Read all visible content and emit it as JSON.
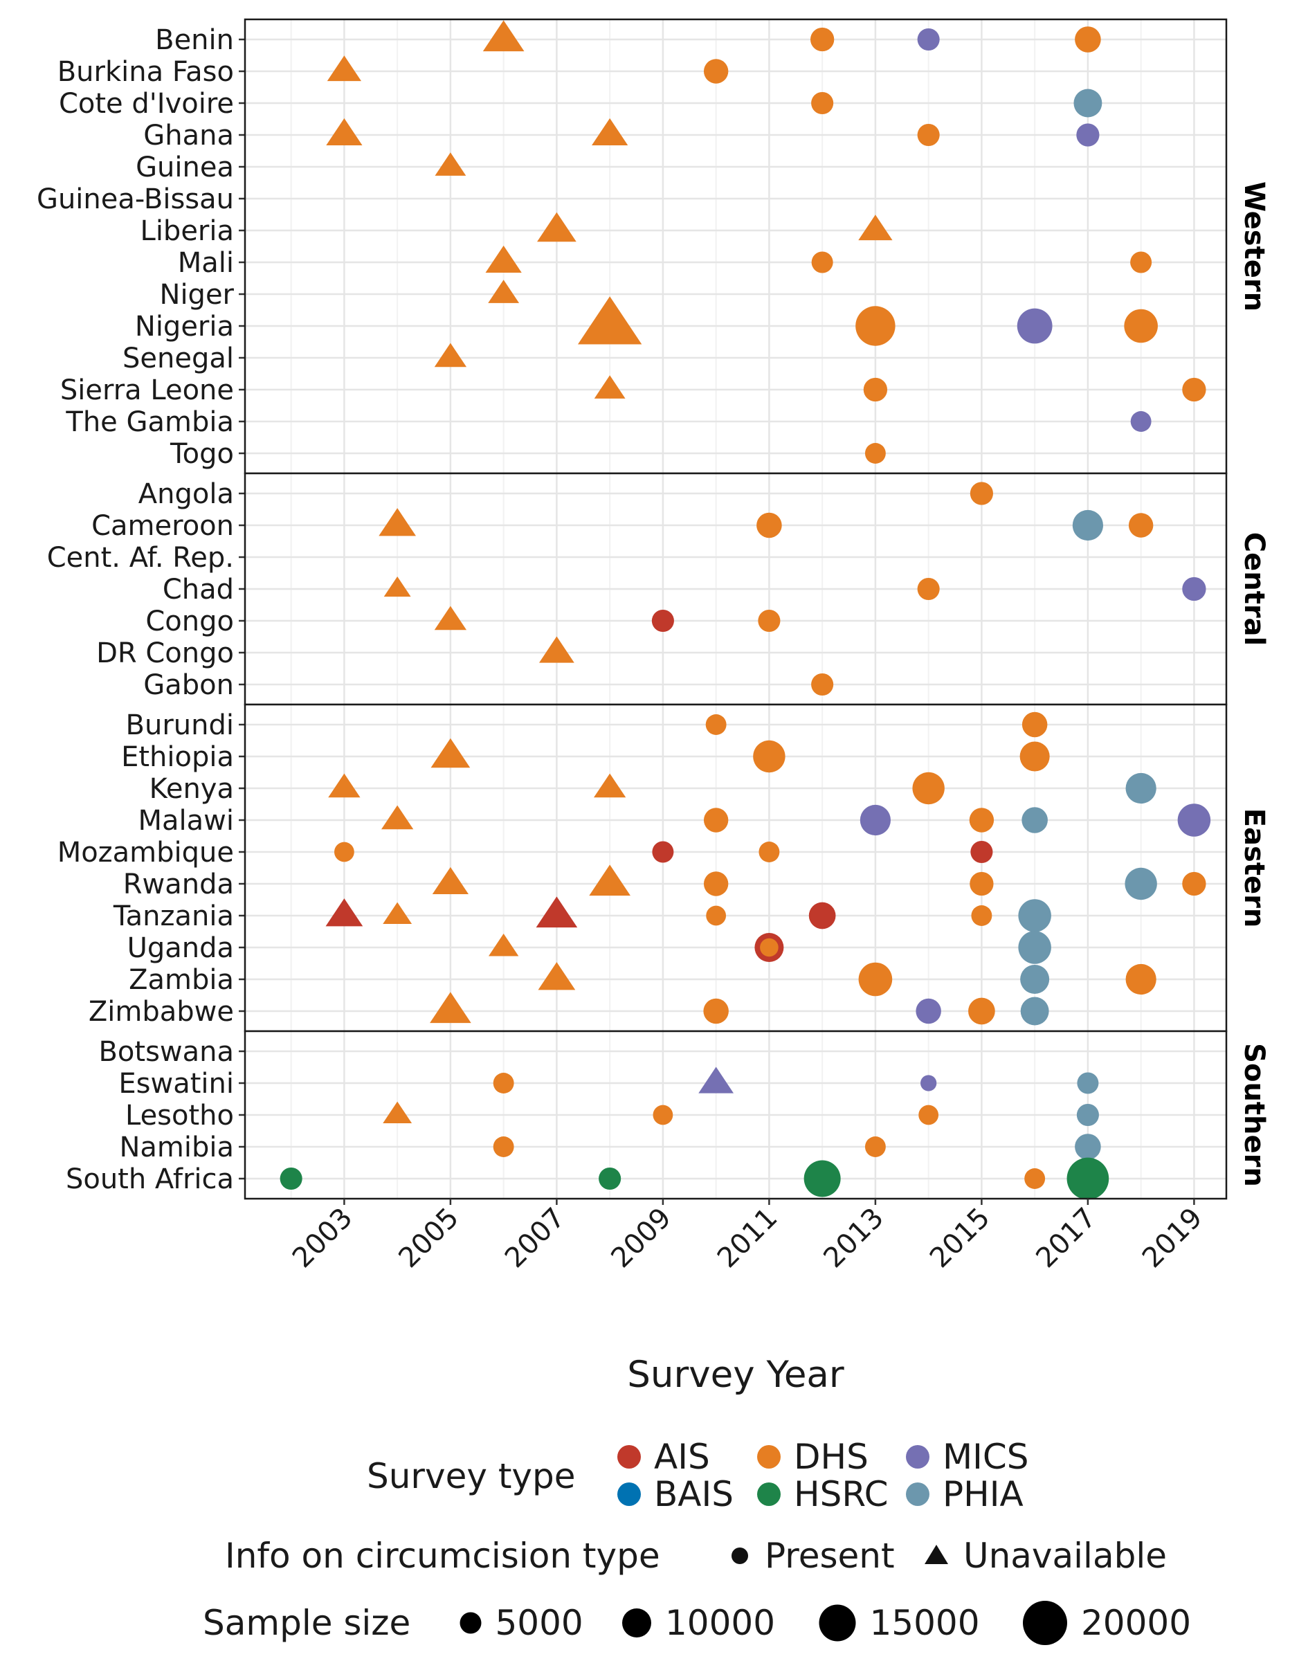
{
  "chart_data": {
    "type": "scatter",
    "xlabel": "Survey Year",
    "x_ticks": [
      2003,
      2005,
      2007,
      2009,
      2011,
      2013,
      2015,
      2017,
      2019
    ],
    "xlim": [
      2001.2,
      2019.6
    ],
    "colors": {
      "AIS": "#C0392B",
      "BAIS": "#0072B2",
      "DHS": "#E67E22",
      "HSRC": "#1E8449",
      "MICS": "#7570B3",
      "PHIA": "#6C97AD"
    },
    "panels": [
      {
        "name": "Western",
        "countries": [
          "Benin",
          "Burkina Faso",
          "Cote d'Ivoire",
          "Ghana",
          "Guinea",
          "Guinea-Bissau",
          "Liberia",
          "Mali",
          "Niger",
          "Nigeria",
          "Senegal",
          "Sierra Leone",
          "The Gambia",
          "Togo"
        ],
        "points": [
          {
            "country": "Benin",
            "year": 2006,
            "type": "DHS",
            "info": "Unavailable",
            "n": 11000
          },
          {
            "country": "Benin",
            "year": 2012,
            "type": "DHS",
            "info": "Present",
            "n": 6500
          },
          {
            "country": "Benin",
            "year": 2014,
            "type": "MICS",
            "info": "Present",
            "n": 5500
          },
          {
            "country": "Benin",
            "year": 2017,
            "type": "DHS",
            "info": "Present",
            "n": 8000
          },
          {
            "country": "Burkina Faso",
            "year": 2003,
            "type": "DHS",
            "info": "Unavailable",
            "n": 7500
          },
          {
            "country": "Burkina Faso",
            "year": 2010,
            "type": "DHS",
            "info": "Present",
            "n": 7000
          },
          {
            "country": "Cote d'Ivoire",
            "year": 2012,
            "type": "DHS",
            "info": "Present",
            "n": 5500
          },
          {
            "country": "Cote d'Ivoire",
            "year": 2017,
            "type": "PHIA",
            "info": "Present",
            "n": 9500
          },
          {
            "country": "Ghana",
            "year": 2003,
            "type": "DHS",
            "info": "Unavailable",
            "n": 8500
          },
          {
            "country": "Ghana",
            "year": 2008,
            "type": "DHS",
            "info": "Unavailable",
            "n": 8500
          },
          {
            "country": "Ghana",
            "year": 2014,
            "type": "DHS",
            "info": "Present",
            "n": 5500
          },
          {
            "country": "Ghana",
            "year": 2017,
            "type": "MICS",
            "info": "Present",
            "n": 6000
          },
          {
            "country": "Guinea",
            "year": 2005,
            "type": "DHS",
            "info": "Unavailable",
            "n": 6000
          },
          {
            "country": "Liberia",
            "year": 2007,
            "type": "DHS",
            "info": "Unavailable",
            "n": 10000
          },
          {
            "country": "Liberia",
            "year": 2013,
            "type": "DHS",
            "info": "Unavailable",
            "n": 7500
          },
          {
            "country": "Mali",
            "year": 2006,
            "type": "DHS",
            "info": "Unavailable",
            "n": 8500
          },
          {
            "country": "Mali",
            "year": 2012,
            "type": "DHS",
            "info": "Present",
            "n": 5000
          },
          {
            "country": "Mali",
            "year": 2018,
            "type": "DHS",
            "info": "Present",
            "n": 5000
          },
          {
            "country": "Niger",
            "year": 2006,
            "type": "DHS",
            "info": "Unavailable",
            "n": 6000
          },
          {
            "country": "Nigeria",
            "year": 2008,
            "type": "DHS",
            "info": "Unavailable",
            "n": 22000
          },
          {
            "country": "Nigeria",
            "year": 2013,
            "type": "DHS",
            "info": "Present",
            "n": 17000
          },
          {
            "country": "Nigeria",
            "year": 2016,
            "type": "MICS",
            "info": "Present",
            "n": 14000
          },
          {
            "country": "Nigeria",
            "year": 2018,
            "type": "DHS",
            "info": "Present",
            "n": 13000
          },
          {
            "country": "Senegal",
            "year": 2005,
            "type": "DHS",
            "info": "Unavailable",
            "n": 6500
          },
          {
            "country": "Sierra Leone",
            "year": 2008,
            "type": "DHS",
            "info": "Unavailable",
            "n": 6000
          },
          {
            "country": "Sierra Leone",
            "year": 2013,
            "type": "DHS",
            "info": "Present",
            "n": 6500
          },
          {
            "country": "Sierra Leone",
            "year": 2019,
            "type": "DHS",
            "info": "Present",
            "n": 6500
          },
          {
            "country": "The Gambia",
            "year": 2018,
            "type": "MICS",
            "info": "Present",
            "n": 4500
          },
          {
            "country": "Togo",
            "year": 2013,
            "type": "DHS",
            "info": "Present",
            "n": 4500
          }
        ]
      },
      {
        "name": "Central",
        "countries": [
          "Angola",
          "Cameroon",
          "Cent. Af. Rep.",
          "Chad",
          "Congo",
          "DR Congo",
          "Gabon"
        ],
        "points": [
          {
            "country": "Angola",
            "year": 2015,
            "type": "DHS",
            "info": "Present",
            "n": 6000
          },
          {
            "country": "Cameroon",
            "year": 2004,
            "type": "DHS",
            "info": "Unavailable",
            "n": 9000
          },
          {
            "country": "Cameroon",
            "year": 2011,
            "type": "DHS",
            "info": "Present",
            "n": 7500
          },
          {
            "country": "Cameroon",
            "year": 2017,
            "type": "PHIA",
            "info": "Present",
            "n": 11000
          },
          {
            "country": "Cameroon",
            "year": 2018,
            "type": "DHS",
            "info": "Present",
            "n": 7000
          },
          {
            "country": "Chad",
            "year": 2004,
            "type": "DHS",
            "info": "Unavailable",
            "n": 4000
          },
          {
            "country": "Chad",
            "year": 2014,
            "type": "DHS",
            "info": "Present",
            "n": 5500
          },
          {
            "country": "Chad",
            "year": 2019,
            "type": "MICS",
            "info": "Present",
            "n": 6500
          },
          {
            "country": "Congo",
            "year": 2005,
            "type": "DHS",
            "info": "Unavailable",
            "n": 6500
          },
          {
            "country": "Congo",
            "year": 2009,
            "type": "AIS",
            "info": "Present",
            "n": 5500
          },
          {
            "country": "Congo",
            "year": 2011,
            "type": "DHS",
            "info": "Present",
            "n": 5500
          },
          {
            "country": "DR Congo",
            "year": 2007,
            "type": "DHS",
            "info": "Unavailable",
            "n": 8000
          },
          {
            "country": "Gabon",
            "year": 2012,
            "type": "DHS",
            "info": "Present",
            "n": 5500
          }
        ]
      },
      {
        "name": "Eastern",
        "countries": [
          "Burundi",
          "Ethiopia",
          "Kenya",
          "Malawi",
          "Mozambique",
          "Rwanda",
          "Tanzania",
          "Uganda",
          "Zambia",
          "Zimbabwe"
        ],
        "points": [
          {
            "country": "Burundi",
            "year": 2010,
            "type": "DHS",
            "info": "Present",
            "n": 4500
          },
          {
            "country": "Burundi",
            "year": 2016,
            "type": "DHS",
            "info": "Present",
            "n": 7500
          },
          {
            "country": "Ethiopia",
            "year": 2005,
            "type": "DHS",
            "info": "Unavailable",
            "n": 10000
          },
          {
            "country": "Ethiopia",
            "year": 2011,
            "type": "DHS",
            "info": "Present",
            "n": 12000
          },
          {
            "country": "Ethiopia",
            "year": 2016,
            "type": "DHS",
            "info": "Present",
            "n": 10500
          },
          {
            "country": "Kenya",
            "year": 2003,
            "type": "DHS",
            "info": "Unavailable",
            "n": 6500
          },
          {
            "country": "Kenya",
            "year": 2008,
            "type": "DHS",
            "info": "Unavailable",
            "n": 6500
          },
          {
            "country": "Kenya",
            "year": 2014,
            "type": "DHS",
            "info": "Present",
            "n": 12000
          },
          {
            "country": "Kenya",
            "year": 2018,
            "type": "PHIA",
            "info": "Present",
            "n": 11000
          },
          {
            "country": "Malawi",
            "year": 2004,
            "type": "DHS",
            "info": "Unavailable",
            "n": 6500
          },
          {
            "country": "Malawi",
            "year": 2010,
            "type": "DHS",
            "info": "Present",
            "n": 7000
          },
          {
            "country": "Malawi",
            "year": 2013,
            "type": "MICS",
            "info": "Present",
            "n": 11000
          },
          {
            "country": "Malawi",
            "year": 2015,
            "type": "DHS",
            "info": "Present",
            "n": 7000
          },
          {
            "country": "Malawi",
            "year": 2016,
            "type": "PHIA",
            "info": "Present",
            "n": 8000
          },
          {
            "country": "Malawi",
            "year": 2019,
            "type": "MICS",
            "info": "Present",
            "n": 12500
          },
          {
            "country": "Mozambique",
            "year": 2003,
            "type": "DHS",
            "info": "Present",
            "n": 4000
          },
          {
            "country": "Mozambique",
            "year": 2009,
            "type": "AIS",
            "info": "Present",
            "n": 5000
          },
          {
            "country": "Mozambique",
            "year": 2011,
            "type": "DHS",
            "info": "Present",
            "n": 4500
          },
          {
            "country": "Mozambique",
            "year": 2015,
            "type": "AIS",
            "info": "Present",
            "n": 5500
          },
          {
            "country": "Rwanda",
            "year": 2005,
            "type": "DHS",
            "info": "Unavailable",
            "n": 8500
          },
          {
            "country": "Rwanda",
            "year": 2008,
            "type": "DHS",
            "info": "Unavailable",
            "n": 11000
          },
          {
            "country": "Rwanda",
            "year": 2010,
            "type": "DHS",
            "info": "Present",
            "n": 7000
          },
          {
            "country": "Rwanda",
            "year": 2015,
            "type": "DHS",
            "info": "Present",
            "n": 6500
          },
          {
            "country": "Rwanda",
            "year": 2018,
            "type": "PHIA",
            "info": "Present",
            "n": 12000
          },
          {
            "country": "Rwanda",
            "year": 2019,
            "type": "DHS",
            "info": "Present",
            "n": 6500
          },
          {
            "country": "Tanzania",
            "year": 2003,
            "type": "AIS",
            "info": "Unavailable",
            "n": 9000
          },
          {
            "country": "Tanzania",
            "year": 2004,
            "type": "DHS",
            "info": "Unavailable",
            "n": 5000
          },
          {
            "country": "Tanzania",
            "year": 2007,
            "type": "AIS",
            "info": "Unavailable",
            "n": 11000
          },
          {
            "country": "Tanzania",
            "year": 2010,
            "type": "DHS",
            "info": "Present",
            "n": 4000
          },
          {
            "country": "Tanzania",
            "year": 2012,
            "type": "AIS",
            "info": "Present",
            "n": 8500
          },
          {
            "country": "Tanzania",
            "year": 2015,
            "type": "DHS",
            "info": "Present",
            "n": 4500
          },
          {
            "country": "Tanzania",
            "year": 2016,
            "type": "PHIA",
            "info": "Present",
            "n": 12500
          },
          {
            "country": "Uganda",
            "year": 2006,
            "type": "DHS",
            "info": "Unavailable",
            "n": 5500
          },
          {
            "country": "Uganda",
            "year": 2011,
            "type": "AIS",
            "info": "Present",
            "n": 10000
          },
          {
            "country": "Uganda",
            "year": 2011,
            "type": "DHS",
            "info": "Present",
            "n": 3000
          },
          {
            "country": "Uganda",
            "year": 2016,
            "type": "PHIA",
            "info": "Present",
            "n": 12500
          },
          {
            "country": "Zambia",
            "year": 2007,
            "type": "DHS",
            "info": "Unavailable",
            "n": 9000
          },
          {
            "country": "Zambia",
            "year": 2013,
            "type": "DHS",
            "info": "Present",
            "n": 13000
          },
          {
            "country": "Zambia",
            "year": 2016,
            "type": "PHIA",
            "info": "Present",
            "n": 10000
          },
          {
            "country": "Zambia",
            "year": 2018,
            "type": "DHS",
            "info": "Present",
            "n": 11000
          },
          {
            "country": "Zimbabwe",
            "year": 2005,
            "type": "DHS",
            "info": "Unavailable",
            "n": 11000
          },
          {
            "country": "Zimbabwe",
            "year": 2010,
            "type": "DHS",
            "info": "Present",
            "n": 7500
          },
          {
            "country": "Zimbabwe",
            "year": 2014,
            "type": "MICS",
            "info": "Present",
            "n": 7500
          },
          {
            "country": "Zimbabwe",
            "year": 2015,
            "type": "DHS",
            "info": "Present",
            "n": 8500
          },
          {
            "country": "Zimbabwe",
            "year": 2016,
            "type": "PHIA",
            "info": "Present",
            "n": 9500
          }
        ]
      },
      {
        "name": "Southern",
        "countries": [
          "Botswana",
          "Eswatini",
          "Lesotho",
          "Namibia",
          "South Africa"
        ],
        "points": [
          {
            "country": "Eswatini",
            "year": 2006,
            "type": "DHS",
            "info": "Present",
            "n": 4500
          },
          {
            "country": "Eswatini",
            "year": 2010,
            "type": "MICS",
            "info": "Unavailable",
            "n": 8000
          },
          {
            "country": "Eswatini",
            "year": 2014,
            "type": "MICS",
            "info": "Present",
            "n": 1500
          },
          {
            "country": "Eswatini",
            "year": 2017,
            "type": "PHIA",
            "info": "Present",
            "n": 5000
          },
          {
            "country": "Lesotho",
            "year": 2004,
            "type": "DHS",
            "info": "Unavailable",
            "n": 5000
          },
          {
            "country": "Lesotho",
            "year": 2009,
            "type": "DHS",
            "info": "Present",
            "n": 4000
          },
          {
            "country": "Lesotho",
            "year": 2014,
            "type": "DHS",
            "info": "Present",
            "n": 4000
          },
          {
            "country": "Lesotho",
            "year": 2017,
            "type": "PHIA",
            "info": "Present",
            "n": 5500
          },
          {
            "country": "Namibia",
            "year": 2006,
            "type": "DHS",
            "info": "Present",
            "n": 4500
          },
          {
            "country": "Namibia",
            "year": 2013,
            "type": "DHS",
            "info": "Present",
            "n": 4500
          },
          {
            "country": "Namibia",
            "year": 2017,
            "type": "PHIA",
            "info": "Present",
            "n": 8000
          },
          {
            "country": "South Africa",
            "year": 2002,
            "type": "HSRC",
            "info": "Present",
            "n": 5500
          },
          {
            "country": "South Africa",
            "year": 2008,
            "type": "HSRC",
            "info": "Present",
            "n": 5500
          },
          {
            "country": "South Africa",
            "year": 2012,
            "type": "HSRC",
            "info": "Present",
            "n": 15000
          },
          {
            "country": "South Africa",
            "year": 2016,
            "type": "DHS",
            "info": "Present",
            "n": 4500
          },
          {
            "country": "South Africa",
            "year": 2017,
            "type": "HSRC",
            "info": "Present",
            "n": 18500
          }
        ]
      }
    ],
    "legend": {
      "color_title": "Survey type",
      "color_items": [
        "AIS",
        "BAIS",
        "DHS",
        "HSRC",
        "MICS",
        "PHIA"
      ],
      "shape_title": "Info on circumcision type",
      "shape_items": [
        "Present",
        "Unavailable"
      ],
      "size_title": "Sample size",
      "size_items": [
        5000,
        10000,
        15000,
        20000
      ]
    }
  }
}
